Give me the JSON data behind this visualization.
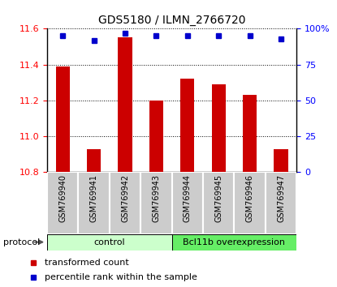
{
  "title": "GDS5180 / ILMN_2766720",
  "samples": [
    "GSM769940",
    "GSM769941",
    "GSM769942",
    "GSM769943",
    "GSM769944",
    "GSM769945",
    "GSM769946",
    "GSM769947"
  ],
  "red_values": [
    11.39,
    10.93,
    11.55,
    11.2,
    11.32,
    11.29,
    11.23,
    10.93
  ],
  "blue_values": [
    95,
    92,
    97,
    95,
    95,
    95,
    95,
    93
  ],
  "ylim_left": [
    10.8,
    11.6
  ],
  "ylim_right": [
    0,
    100
  ],
  "yticks_left": [
    10.8,
    11.0,
    11.2,
    11.4,
    11.6
  ],
  "yticks_right": [
    0,
    25,
    50,
    75,
    100
  ],
  "ytick_labels_right": [
    "0",
    "25",
    "50",
    "75",
    "100%"
  ],
  "control_color": "#ccffcc",
  "overexpression_color": "#66ee66",
  "bar_color": "#cc0000",
  "dot_color": "#0000cc",
  "sample_bg_color": "#cccccc",
  "legend_bar_label": "transformed count",
  "legend_dot_label": "percentile rank within the sample",
  "protocol_label": "protocol",
  "n_control": 4,
  "n_overexp": 4
}
